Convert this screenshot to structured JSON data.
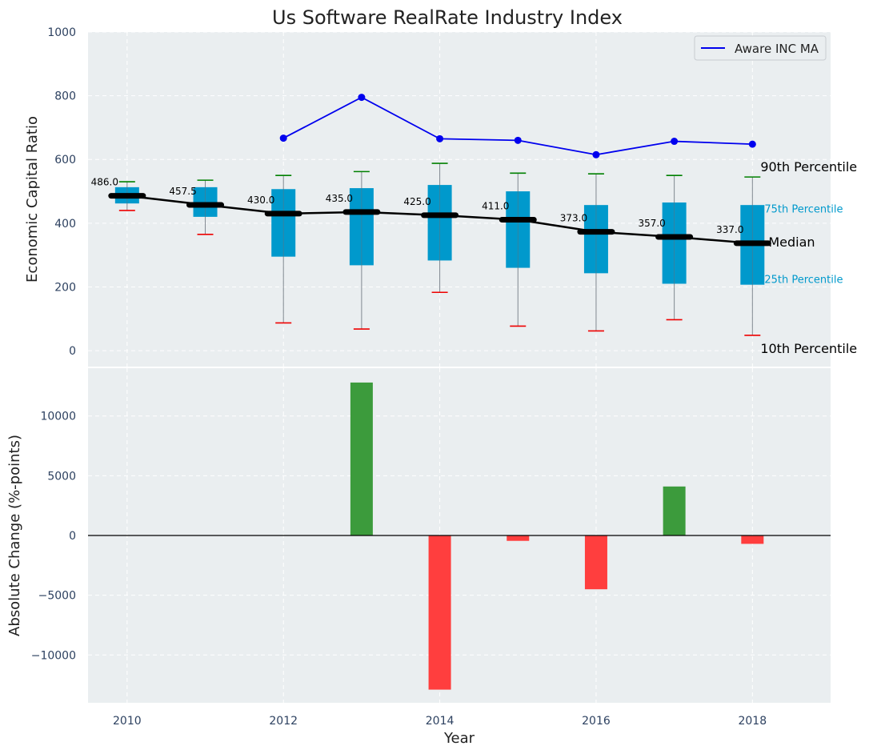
{
  "chart_data": {
    "type": "box+line+bar",
    "title": "Us Software RealRate Industry Index",
    "top_panel": {
      "ylabel": "Economic Capital Ratio",
      "ylim": [
        -50,
        1000
      ],
      "yticks": [
        0,
        200,
        400,
        600,
        800,
        1000
      ],
      "ytick_labels": [
        "0",
        "200",
        "400",
        "600",
        "800",
        "1000"
      ],
      "years": [
        2010,
        2011,
        2012,
        2013,
        2014,
        2015,
        2016,
        2017,
        2018
      ],
      "p10": [
        440,
        365,
        87,
        68,
        183,
        77,
        62,
        97,
        48
      ],
      "p25": [
        462,
        420,
        295,
        268,
        283,
        260,
        243,
        210,
        207
      ],
      "median": [
        486.0,
        457.5,
        430.0,
        435.0,
        425.0,
        411.0,
        373.0,
        357.0,
        337.0
      ],
      "median_labels": [
        "486.0",
        "457.5",
        "430.0",
        "435.0",
        "425.0",
        "411.0",
        "373.0",
        "357.0",
        "337.0"
      ],
      "p75": [
        513,
        513,
        507,
        510,
        520,
        500,
        457,
        465,
        457
      ],
      "p90": [
        530,
        535,
        550,
        562,
        588,
        557,
        555,
        550,
        545
      ],
      "company_series": {
        "name": "Aware INC MA",
        "years": [
          2012,
          2013,
          2014,
          2015,
          2016,
          2017,
          2018
        ],
        "values": [
          667,
          795,
          665,
          660,
          615,
          657,
          648
        ]
      },
      "legend_position": "upper-right",
      "annotations": {
        "p90": "90th Percentile",
        "p75": "75th Percentile",
        "median": "Median",
        "p25": "25th Percentile",
        "p10": "10th Percentile"
      }
    },
    "bottom_panel": {
      "ylabel": "Absolute Change (%-points)",
      "xlabel": "Year",
      "ylim": [
        -14000,
        14000
      ],
      "yticks": [
        -10000,
        -5000,
        0,
        5000,
        10000
      ],
      "ytick_labels": [
        "−10000",
        "−5000",
        "0",
        "5000",
        "10000"
      ],
      "years": [
        2013,
        2014,
        2015,
        2016,
        2017,
        2018
      ],
      "values": [
        12800,
        -12900,
        -450,
        -4500,
        4100,
        -700
      ]
    },
    "xlim": [
      2009.5,
      2019.0
    ],
    "xticks": [
      2010,
      2012,
      2014,
      2016,
      2018
    ],
    "xtick_labels": [
      "2010",
      "2012",
      "2014",
      "2016",
      "2018"
    ],
    "grid": true,
    "colors": {
      "panel_bg": "#eaeef0",
      "box": "#0099cc",
      "company_line": "#0000ee",
      "median_line": "#000000",
      "p90_cap": "#008000",
      "p10_cap": "#ee0000",
      "bar_positive": "#3c9b3c",
      "bar_negative": "#ff3e3e",
      "annot_box": "#0099cc",
      "tick_text": "#2d4160"
    }
  }
}
